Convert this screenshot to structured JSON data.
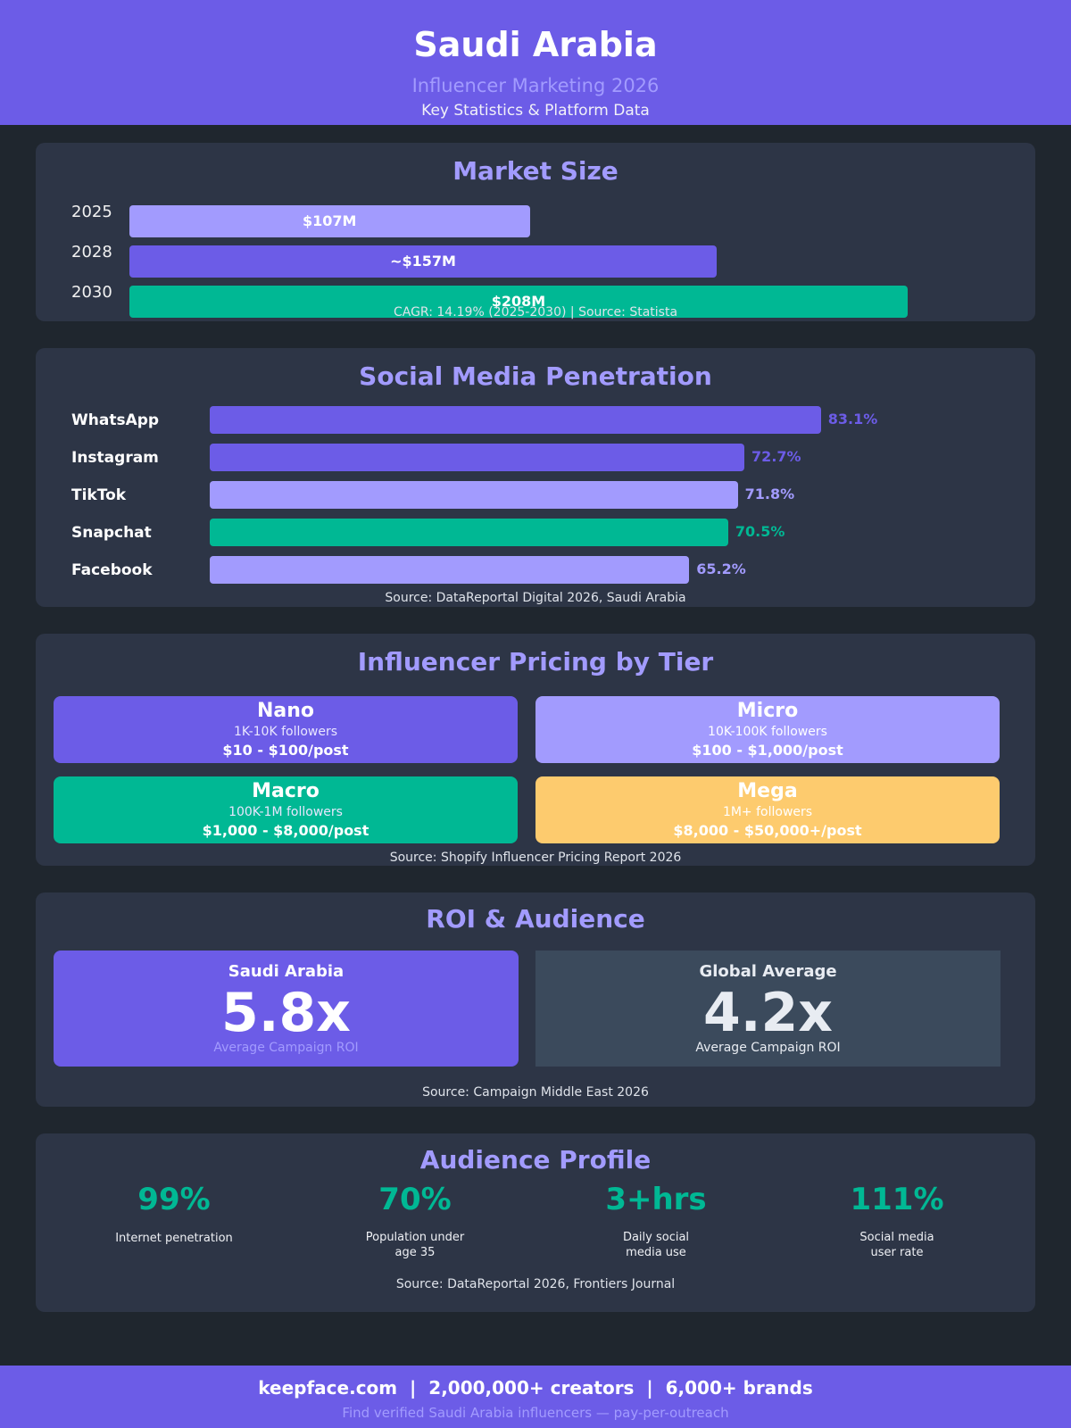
{
  "header": {
    "title": "Saudi Arabia",
    "subtitle": "Influencer Marketing 2026",
    "tagline": "Key Statistics & Platform Data"
  },
  "colors": {
    "primary": "#6c5ce7",
    "light": "#a29bfe",
    "green": "#00b894",
    "yellow": "#fdcb6e",
    "card": "#2d3546",
    "background": "#1f262e",
    "slate": "#3b4a5c"
  },
  "chart_data": [
    {
      "type": "bar",
      "orientation": "horizontal",
      "title": "Market Size",
      "categories": [
        "2025",
        "2028",
        "2030"
      ],
      "values": [
        107,
        157,
        208
      ],
      "value_labels": [
        "$107M",
        "~$157M",
        "$208M"
      ],
      "bar_colors": [
        "#a29bfe",
        "#6c5ce7",
        "#00b894"
      ],
      "xlim": [
        0,
        240
      ],
      "note": "CAGR: 14.19% (2025-2030) | Source: Statista"
    },
    {
      "type": "bar",
      "orientation": "horizontal",
      "title": "Social Media Penetration",
      "categories": [
        "WhatsApp",
        "Instagram",
        "TikTok",
        "Snapchat",
        "Facebook"
      ],
      "values": [
        83.1,
        72.7,
        71.8,
        70.5,
        65.2
      ],
      "value_labels": [
        "83.1%",
        "72.7%",
        "71.8%",
        "70.5%",
        "65.2%"
      ],
      "bar_colors": [
        "#6c5ce7",
        "#6c5ce7",
        "#a29bfe",
        "#00b894",
        "#a29bfe"
      ],
      "xlim": [
        0,
        100
      ],
      "source": "Source: DataReportal Digital 2026, Saudi Arabia"
    }
  ],
  "pricing": {
    "title": "Influencer Pricing by Tier",
    "tiers": [
      {
        "name": "Nano",
        "followers": "1K-10K followers",
        "price": "$10 - $100/post",
        "color": "#6c5ce7"
      },
      {
        "name": "Micro",
        "followers": "10K-100K followers",
        "price": "$100 - $1,000/post",
        "color": "#a29bfe"
      },
      {
        "name": "Macro",
        "followers": "100K-1M followers",
        "price": "$1,000 - $8,000/post",
        "color": "#00b894"
      },
      {
        "name": "Mega",
        "followers": "1M+ followers",
        "price": "$8,000 - $50,000+/post",
        "color": "#fdcb6e"
      }
    ],
    "source": "Source: Shopify Influencer Pricing Report 2026"
  },
  "roi": {
    "title": "ROI & Audience",
    "saudi": {
      "label": "Saudi Arabia",
      "value": "5.8x",
      "sub": "Average Campaign ROI"
    },
    "global": {
      "label": "Global Average",
      "value": "4.2x",
      "sub": "Average Campaign ROI"
    },
    "source": "Source: Campaign Middle East 2026"
  },
  "audience": {
    "title": "Audience Profile",
    "stats": [
      {
        "value": "99%",
        "label": "Internet penetration"
      },
      {
        "value": "70%",
        "label": "Population under age 35"
      },
      {
        "value": "3+hrs",
        "label": "Daily social media use"
      },
      {
        "value": "111%",
        "label": "Social media user rate"
      }
    ],
    "source": "Source: DataReportal 2026, Frontiers Journal"
  },
  "footer": {
    "line1": "keepface.com  |  2,000,000+ creators  |  6,000+ brands",
    "line2": "Find verified Saudi Arabia influencers — pay-per-outreach"
  }
}
